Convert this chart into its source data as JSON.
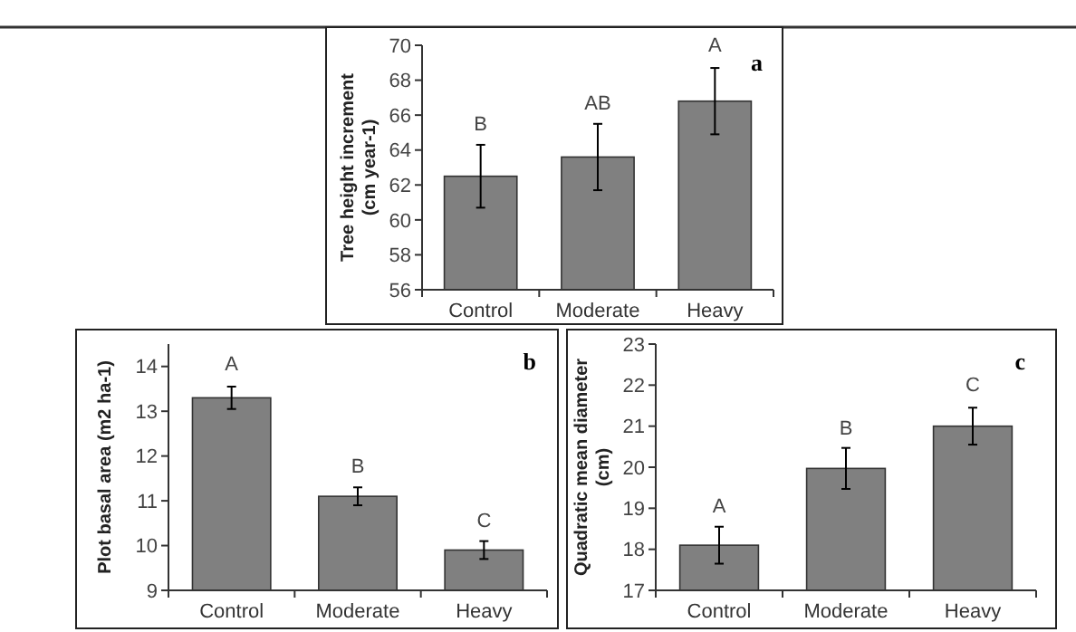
{
  "chart_data": [
    {
      "type": "bar",
      "title": "a",
      "ylabel": "Tree height increment (cm year-1)",
      "categories": [
        "Control",
        "Moderate",
        "Heavy"
      ],
      "values": [
        62.5,
        63.6,
        66.8
      ],
      "errors": [
        1.8,
        1.9,
        1.9
      ],
      "color": "#808080",
      "ylim": [
        56,
        70
      ],
      "yticks": [
        56,
        58,
        60,
        62,
        64,
        66,
        68,
        70
      ],
      "grid": false,
      "annotations": [
        {
          "text": "B",
          "x": "Control",
          "y": 64.3
        },
        {
          "text": "AB",
          "x": "Moderate",
          "y": 65.5
        },
        {
          "text": "A",
          "x": "Heavy",
          "y": 68.8
        }
      ]
    },
    {
      "type": "bar",
      "title": "b",
      "ylabel": "Plot basal area (m2 ha-1)",
      "categories": [
        "Control",
        "Moderate",
        "Heavy"
      ],
      "values": [
        13.3,
        11.1,
        9.9
      ],
      "errors": [
        0.25,
        0.2,
        0.2
      ],
      "color": "#808080",
      "ylim": [
        9,
        14.5
      ],
      "yticks": [
        9,
        10,
        11,
        12,
        13,
        14
      ],
      "grid": false,
      "annotations": [
        {
          "text": "A",
          "x": "Control",
          "y": 13.6
        },
        {
          "text": "B",
          "x": "Moderate",
          "y": 11.3
        },
        {
          "text": "C",
          "x": "Heavy",
          "y": 10.1
        }
      ]
    },
    {
      "type": "bar",
      "title": "c",
      "ylabel": "Quadratic mean diameter (cm)",
      "categories": [
        "Control",
        "Moderate",
        "Heavy"
      ],
      "values": [
        18.1,
        19.97,
        21.0
      ],
      "errors": [
        0.45,
        0.5,
        0.45
      ],
      "color": "#808080",
      "ylim": [
        17,
        23
      ],
      "yticks": [
        17,
        18,
        19,
        20,
        21,
        22,
        23
      ],
      "grid": false,
      "annotations": [
        {
          "text": "A",
          "x": "Control",
          "y": 18.55
        },
        {
          "text": "B",
          "x": "Moderate",
          "y": 20.45
        },
        {
          "text": "C",
          "x": "Heavy",
          "y": 21.5
        }
      ]
    }
  ]
}
